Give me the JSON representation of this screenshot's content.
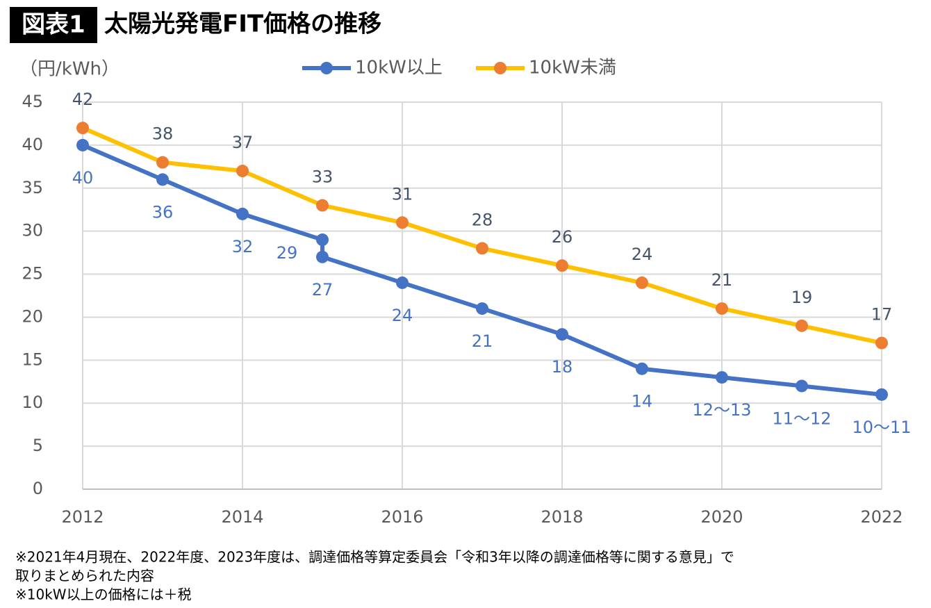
{
  "chart_data": {
    "type": "line",
    "badge": "図表1",
    "title": "太陽光発電FIT価格の推移",
    "y_label": "（円/kWh）",
    "xlim": [
      2012,
      2022
    ],
    "xticks": [
      2012,
      2014,
      2016,
      2018,
      2020,
      2022
    ],
    "ylim": [
      0,
      45
    ],
    "yticks": [
      0,
      5,
      10,
      15,
      20,
      25,
      30,
      35,
      40,
      45
    ],
    "grid": true,
    "legend": "top",
    "series": [
      {
        "name": "10kW以上",
        "color": "#4472c4",
        "marker_color": "#4472c4",
        "label_color": "#4472c4",
        "label_side": "below",
        "x": [
          2012,
          2013,
          2014,
          2015,
          2015,
          2016,
          2017,
          2018,
          2019,
          2020,
          2021,
          2022
        ],
        "values": [
          40,
          36,
          32,
          29,
          27,
          24,
          21,
          18,
          14,
          13,
          12,
          11
        ],
        "value_labels": [
          "40",
          "36",
          "32",
          "29",
          "27",
          "24",
          "21",
          "18",
          "14",
          "12～13",
          "11～12",
          "10～11"
        ]
      },
      {
        "name": "10kW未満",
        "color": "#ffc000",
        "marker_color": "#ed7d31",
        "label_color": "#44546a",
        "label_side": "above",
        "x": [
          2012,
          2013,
          2014,
          2015,
          2016,
          2017,
          2018,
          2019,
          2020,
          2021,
          2022
        ],
        "values": [
          42,
          38,
          37,
          33,
          31,
          28,
          26,
          24,
          21,
          19,
          17
        ]
      }
    ],
    "notes": [
      "※2021年4月現在、2022年度、2023年度は、調達価格等算定委員会「令和3年以降の調達価格等に関する意見」で",
      "取りまとめられた内容",
      "※10kW以上の価格には＋税"
    ]
  }
}
